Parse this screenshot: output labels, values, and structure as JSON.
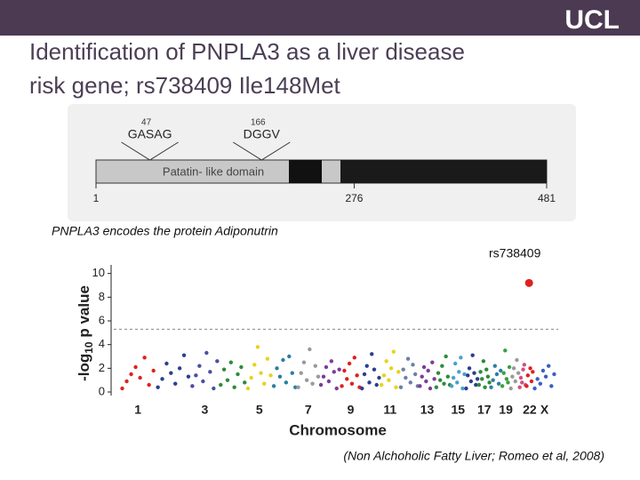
{
  "header": {
    "logo": "UCL"
  },
  "title_lines": [
    "Identification of PNPLA3 as a liver disease",
    "risk gene; rs738409 Ile148Met"
  ],
  "protein": {
    "position_ticks": [
      1,
      276,
      481
    ],
    "motifs": [
      {
        "position": 47,
        "label": "GASAG"
      },
      {
        "position": 166,
        "label": "DGGV"
      }
    ],
    "domain_label": "Patatin- like domain"
  },
  "caption": "PNPLA3 encodes the protein Adiponutrin",
  "citation": "(Non Alchoholic Fatty Liver; Romeo et al, 2008)",
  "chart_data": {
    "type": "manhattan",
    "annotation": "rs738409",
    "y_label": [
      "-log",
      "10",
      " p value"
    ],
    "x_label": "Chromosome",
    "ylim": [
      0,
      10.5
    ],
    "yticks": [
      0,
      2,
      4,
      6,
      8,
      10
    ],
    "threshold": 5.3,
    "categories": [
      "1",
      null,
      "3",
      null,
      "5",
      null,
      "7",
      null,
      "9",
      null,
      "11",
      null,
      "13",
      null,
      "15",
      null,
      "17",
      null,
      "19",
      null,
      null,
      "22",
      "X"
    ],
    "colors": [
      "#e02020",
      "#2b3f8f",
      "#4a4fa0",
      "#2e8b3a",
      "#e8d21c",
      "#2a7fa0",
      "#9a9a9a",
      "#7d3c98",
      "#e02020",
      "#2b3f8f",
      "#e8d21c",
      "#6b7fa8",
      "#7d3c98",
      "#2e8b3a",
      "#4aa0d0",
      "#2b3f8f",
      "#2e8b3a",
      "#2a7fa0",
      "#3aa040",
      "#9a9a9a",
      "#d05080",
      "#e02020",
      "#3a5fc0"
    ],
    "values": [
      [
        0.3,
        0.9,
        1.5,
        2.1,
        1.2,
        2.9,
        0.6,
        1.8
      ],
      [
        0.4,
        1.1,
        2.4,
        1.6,
        0.7,
        2.0,
        3.1,
        1.3
      ],
      [
        0.5,
        1.4,
        2.2,
        0.9,
        3.3,
        1.7,
        0.3,
        2.6
      ],
      [
        0.6,
        1.9,
        1.0,
        2.5,
        0.4,
        1.5,
        2.1,
        0.8
      ],
      [
        0.3,
        1.2,
        2.3,
        3.8,
        1.6,
        0.7,
        2.8,
        1.4
      ],
      [
        0.5,
        2.0,
        1.3,
        2.7,
        0.8,
        3.0,
        1.6,
        0.4
      ],
      [
        0.4,
        1.6,
        2.5,
        1.0,
        3.6,
        0.7,
        2.2,
        1.3
      ],
      [
        0.6,
        1.3,
        2.1,
        0.9,
        2.6,
        1.7,
        0.3,
        1.9
      ],
      [
        0.5,
        1.8,
        1.1,
        2.4,
        0.7,
        2.9,
        1.4,
        0.4
      ],
      [
        0.3,
        1.5,
        2.2,
        0.8,
        3.2,
        1.9,
        0.6,
        1.2
      ],
      [
        0.6,
        1.4,
        2.6,
        1.0,
        2.0,
        3.4,
        0.4,
        1.7
      ],
      [
        0.4,
        1.9,
        1.2,
        2.8,
        0.8,
        2.3,
        1.5,
        0.5
      ],
      [
        0.5,
        1.3,
        2.1,
        0.9,
        1.8,
        0.3,
        2.5,
        1.1
      ],
      [
        0.4,
        1.6,
        1.0,
        2.2,
        0.7,
        3.0,
        1.3,
        0.6
      ],
      [
        0.5,
        1.2,
        2.4,
        0.8,
        1.7,
        2.9,
        0.3,
        1.5
      ],
      [
        0.3,
        1.4,
        2.0,
        0.9,
        3.1,
        1.6,
        0.6,
        1.1
      ],
      [
        0.6,
        1.7,
        1.1,
        2.6,
        0.4,
        1.9,
        1.3,
        0.8
      ],
      [
        0.4,
        1.0,
        2.2,
        1.5,
        0.7,
        1.8
      ],
      [
        0.5,
        1.6,
        3.5,
        1.1,
        0.8,
        2.1
      ],
      [
        0.3,
        1.3,
        2.0,
        0.9,
        2.7,
        1.6
      ],
      [
        0.4,
        1.2,
        0.8,
        1.9,
        2.3,
        0.6
      ],
      [
        0.5,
        1.4,
        9.2,
        2.0,
        0.9,
        1.7
      ],
      [
        0.3,
        1.1,
        0.7,
        1.8,
        1.3,
        2.2,
        0.5,
        1.5
      ]
    ]
  }
}
